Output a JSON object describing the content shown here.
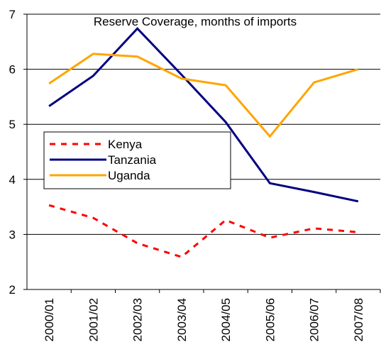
{
  "chart_data": {
    "type": "line",
    "title": "Reserve Coverage, months of imports",
    "categories": [
      "2000/01",
      "2001/02",
      "2002/03",
      "2003/04",
      "2004/05",
      "2005/06",
      "2006/07",
      "2007/08"
    ],
    "series": [
      {
        "name": "Kenya",
        "color": "#ff0000",
        "dashed": true,
        "values": [
          3.53,
          3.3,
          2.84,
          2.59,
          3.26,
          2.94,
          3.11,
          3.04
        ]
      },
      {
        "name": "Tanzania",
        "color": "#000080",
        "values": [
          5.33,
          5.88,
          6.74,
          5.9,
          5.04,
          3.93,
          3.77,
          3.6
        ]
      },
      {
        "name": "Uganda",
        "color": "#ffa500",
        "values": [
          5.74,
          6.28,
          6.23,
          5.83,
          5.71,
          4.78,
          5.76,
          6.0
        ]
      }
    ],
    "ylim": [
      2,
      7
    ],
    "yticks": [
      2,
      3,
      4,
      5,
      6,
      7
    ],
    "grid": true
  }
}
